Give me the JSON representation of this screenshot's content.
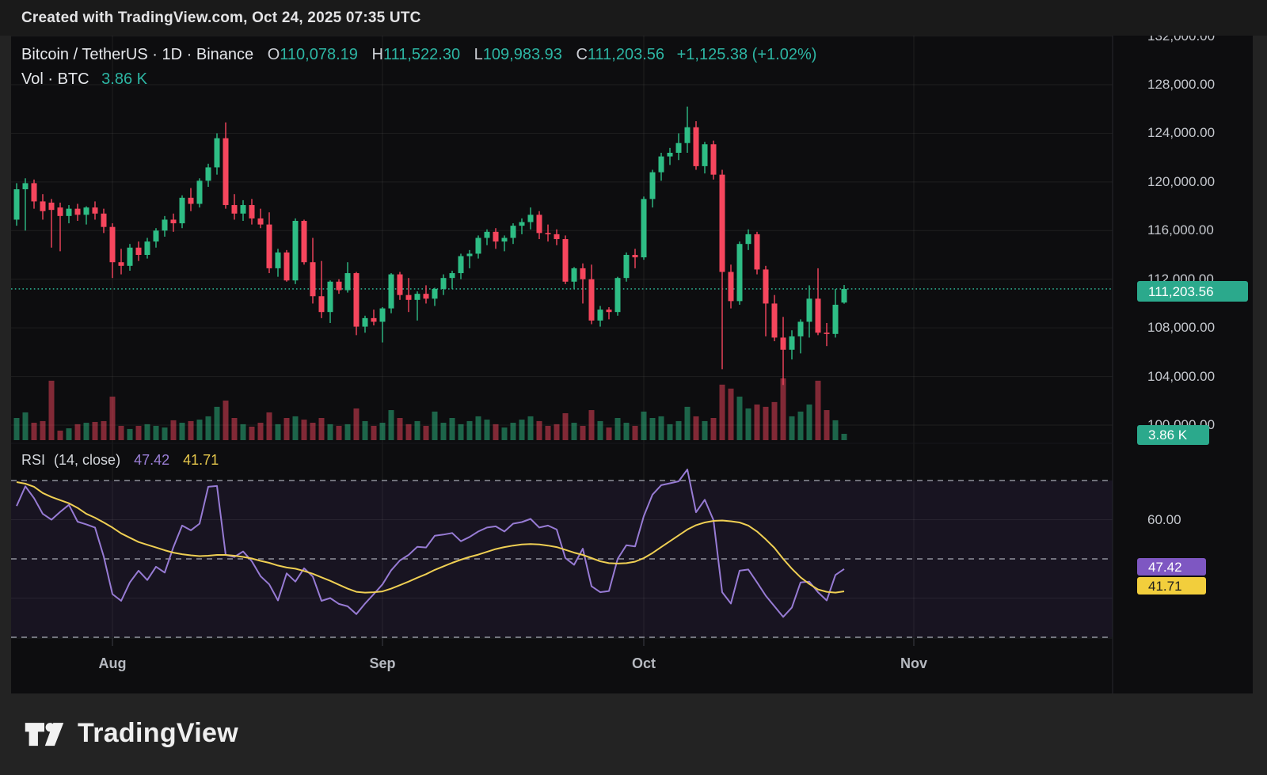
{
  "watermark": {
    "text": "Created with TradingView.com, Oct 24, 2025 07:35 UTC"
  },
  "legend": {
    "symbol": "Bitcoin / TetherUS",
    "separator": "·",
    "interval": "1D",
    "exchange": "Binance",
    "ohlc": {
      "o_label": "O",
      "o": "110,078.19",
      "h_label": "H",
      "h": "111,522.30",
      "l_label": "L",
      "l": "109,983.93",
      "c_label": "C",
      "c": "111,203.56",
      "change": "+1,125.38 (+1.02%)"
    },
    "volume_label": "Vol · BTC",
    "volume_value": "3.86 K"
  },
  "rsi_pane": {
    "title": "RSI",
    "params": "(14, close)",
    "rsi_value": "47.42",
    "ma_value": "41.71",
    "axis_label": "60.00",
    "rsi_badge": "47.42",
    "ma_badge": "41.71"
  },
  "badges": {
    "last_price": "111,203.56",
    "last_volume": "3.86 K"
  },
  "logo": {
    "brand": "TradingView",
    "mark_icon": "tradingview-logo-icon"
  },
  "colors": {
    "up": "#2EBD85",
    "down": "#F6465D",
    "vol_up": "#2EBD85",
    "vol_down": "#F6465D",
    "rsi_line": "#977BD4",
    "rsi_ma_line": "#EFCF53",
    "price_badge_bg": "#2BA98C",
    "rsi_badge_bg": "#7E57C2",
    "ma_badge_bg": "#F2CE3C",
    "band_fill": "rgba(126,87,194,0.10)",
    "grid": "rgba(255,255,255,0.07)",
    "dashed_level": "#8F929C",
    "dotted_price_line": "#2BA98C",
    "axis_text": "#C5C8CE"
  },
  "time_axis": {
    "labels": [
      {
        "text": "Aug",
        "candle_index": 11
      },
      {
        "text": "Sep",
        "candle_index": 42
      },
      {
        "text": "Oct",
        "candle_index": 72
      },
      {
        "text": "Nov",
        "candle_index": 103
      }
    ]
  },
  "chart_data": {
    "type": "candlestick+volume+rsi",
    "title": "Bitcoin / TetherUS · 1D · Binance",
    "last_price": 111203.56,
    "last_volume_k": 3.86,
    "price_axis_labels": [
      {
        "price": 132000,
        "text": "132,000.00"
      },
      {
        "price": 128000,
        "text": "128,000.00"
      },
      {
        "price": 124000,
        "text": "124,000.00"
      },
      {
        "price": 120000,
        "text": "120,000.00"
      },
      {
        "price": 116000,
        "text": "116,000.00"
      },
      {
        "price": 112000,
        "text": "112,000.00"
      },
      {
        "price": 108000,
        "text": "108,000.00"
      },
      {
        "price": 104000,
        "text": "104,000.00"
      },
      {
        "price": 100000,
        "text": "100,000.00"
      }
    ],
    "price_range_visible": [
      99500,
      132500
    ],
    "rsi_dashed_levels": [
      70,
      50,
      30
    ],
    "rsi_solid_levels": [
      60,
      40
    ],
    "rsi_axis_labels": [
      {
        "value": 60,
        "text": "60.00"
      }
    ],
    "candles": [
      [
        116900,
        119900,
        116400,
        119400
      ],
      [
        119400,
        120300,
        116000,
        119900
      ],
      [
        119900,
        120200,
        117800,
        118400
      ],
      [
        118400,
        119000,
        116900,
        117600
      ],
      [
        118300,
        118600,
        114600,
        117700
      ],
      [
        117900,
        118300,
        114300,
        117200
      ],
      [
        117200,
        118100,
        116600,
        117800
      ],
      [
        117800,
        118200,
        116800,
        117300
      ],
      [
        117300,
        118000,
        116500,
        117900
      ],
      [
        117900,
        118400,
        116900,
        117400
      ],
      [
        117400,
        117800,
        115800,
        116300
      ],
      [
        116300,
        116600,
        112100,
        113400
      ],
      [
        113400,
        114500,
        112400,
        113100
      ],
      [
        113100,
        114900,
        112700,
        114600
      ],
      [
        114600,
        115100,
        113500,
        114000
      ],
      [
        114000,
        115400,
        113700,
        115100
      ],
      [
        115100,
        116200,
        114600,
        116000
      ],
      [
        116000,
        117200,
        115500,
        116900
      ],
      [
        116900,
        117400,
        115900,
        116600
      ],
      [
        116600,
        118900,
        116200,
        118700
      ],
      [
        118700,
        119500,
        117600,
        118200
      ],
      [
        118200,
        120300,
        117900,
        120100
      ],
      [
        120100,
        121500,
        119600,
        121200
      ],
      [
        121200,
        124000,
        120600,
        123600
      ],
      [
        123600,
        124900,
        117800,
        118100
      ],
      [
        118100,
        119000,
        116900,
        117400
      ],
      [
        117400,
        118500,
        116800,
        118100
      ],
      [
        118100,
        118600,
        116500,
        117000
      ],
      [
        117000,
        117800,
        116200,
        116500
      ],
      [
        116500,
        117500,
        112500,
        112900
      ],
      [
        112900,
        114500,
        112200,
        114200
      ],
      [
        114200,
        114400,
        111800,
        111900
      ],
      [
        111900,
        117000,
        111600,
        116800
      ],
      [
        116800,
        116900,
        113200,
        113400
      ],
      [
        113400,
        115400,
        110000,
        110600
      ],
      [
        110600,
        113500,
        108800,
        109300
      ],
      [
        109300,
        111900,
        108400,
        111800
      ],
      [
        111800,
        112000,
        110800,
        111100
      ],
      [
        111100,
        113400,
        110900,
        112500
      ],
      [
        112500,
        112600,
        107400,
        108100
      ],
      [
        108100,
        109000,
        107600,
        108800
      ],
      [
        108800,
        109500,
        108200,
        108500
      ],
      [
        108500,
        109700,
        106800,
        109600
      ],
      [
        109600,
        112500,
        109200,
        112400
      ],
      [
        112400,
        112600,
        110300,
        110700
      ],
      [
        110700,
        112100,
        109300,
        110300
      ],
      [
        110300,
        111000,
        108600,
        110800
      ],
      [
        110800,
        111500,
        110000,
        110400
      ],
      [
        110400,
        111300,
        109800,
        111200
      ],
      [
        111200,
        112400,
        110700,
        112100
      ],
      [
        112100,
        112700,
        111200,
        112500
      ],
      [
        112500,
        114100,
        112000,
        113900
      ],
      [
        113900,
        114400,
        112900,
        114100
      ],
      [
        114100,
        115600,
        113700,
        115400
      ],
      [
        115400,
        116100,
        114800,
        115900
      ],
      [
        115900,
        116200,
        114500,
        115100
      ],
      [
        115100,
        115600,
        114300,
        115400
      ],
      [
        115400,
        116600,
        114900,
        116400
      ],
      [
        116400,
        117000,
        115700,
        116700
      ],
      [
        116700,
        117900,
        116100,
        117300
      ],
      [
        117300,
        117600,
        115300,
        115800
      ],
      [
        115800,
        116500,
        115100,
        115700
      ],
      [
        115700,
        116100,
        114800,
        115300
      ],
      [
        115300,
        115600,
        111600,
        111800
      ],
      [
        111800,
        113000,
        111200,
        112900
      ],
      [
        112900,
        113300,
        110000,
        112000
      ],
      [
        112000,
        113200,
        108300,
        108600
      ],
      [
        108600,
        109800,
        108100,
        109500
      ],
      [
        109500,
        109700,
        108700,
        109300
      ],
      [
        109300,
        112200,
        109000,
        112100
      ],
      [
        112100,
        114200,
        111800,
        114000
      ],
      [
        114000,
        114500,
        112900,
        113800
      ],
      [
        113800,
        118800,
        113600,
        118600
      ],
      [
        118600,
        121000,
        117900,
        120800
      ],
      [
        120800,
        122400,
        120100,
        122100
      ],
      [
        122100,
        122800,
        121400,
        122400
      ],
      [
        122400,
        124000,
        121800,
        123200
      ],
      [
        123200,
        126200,
        122400,
        124500
      ],
      [
        124500,
        125000,
        121000,
        121300
      ],
      [
        121300,
        123300,
        120700,
        123100
      ],
      [
        123100,
        123400,
        120200,
        120600
      ],
      [
        120600,
        121000,
        104600,
        112600
      ],
      [
        112600,
        113200,
        109600,
        110200
      ],
      [
        110200,
        115100,
        109900,
        114900
      ],
      [
        114900,
        116100,
        114400,
        115700
      ],
      [
        115700,
        115900,
        112400,
        112800
      ],
      [
        112800,
        113100,
        107300,
        110000
      ],
      [
        110000,
        110700,
        106900,
        107200
      ],
      [
        107200,
        108900,
        103300,
        106200
      ],
      [
        106200,
        107800,
        105400,
        107300
      ],
      [
        107300,
        108700,
        105900,
        108500
      ],
      [
        108500,
        111500,
        107200,
        110400
      ],
      [
        110400,
        112900,
        107400,
        107600
      ],
      [
        107600,
        108400,
        106500,
        107500
      ],
      [
        107500,
        111200,
        107200,
        109900
      ],
      [
        110078.19,
        111522.3,
        109983.93,
        111203.56
      ]
    ],
    "volume_k": [
      13.5,
      16.9,
      10.6,
      11.6,
      36.2,
      5.8,
      7.2,
      9.7,
      10.6,
      11.1,
      11.6,
      26.5,
      8.7,
      6.8,
      8.7,
      9.7,
      8.7,
      7.7,
      12.1,
      10.6,
      11.6,
      12.5,
      14.5,
      20.3,
      24.1,
      13.5,
      9.7,
      8.2,
      10.6,
      16.9,
      9.7,
      13.5,
      14.5,
      12.5,
      10.6,
      13.5,
      9.7,
      8.7,
      9.7,
      19.3,
      11.6,
      8.7,
      10.6,
      18.3,
      13.5,
      9.7,
      11.6,
      8.7,
      17.4,
      10.6,
      13.5,
      9.7,
      11.6,
      14.5,
      12.5,
      9.7,
      7.7,
      10.6,
      12.5,
      14.5,
      11.6,
      8.7,
      9.7,
      16.4,
      10.6,
      8.7,
      18.3,
      11.6,
      7.7,
      13.5,
      10.6,
      8.7,
      17.4,
      13.5,
      14.5,
      9.7,
      11.6,
      20.3,
      14.5,
      11.6,
      13.5,
      33.8,
      31.4,
      26.5,
      19.3,
      21.7,
      20.3,
      23.2,
      37.6,
      14.5,
      17.4,
      21.7,
      36.2,
      18.3,
      12.1,
      3.86
    ],
    "rsi": [
      63.5,
      68.5,
      65.5,
      61.5,
      60.0,
      62.0,
      63.8,
      59.5,
      58.8,
      58.0,
      50.6,
      41.0,
      39.3,
      44.0,
      47.0,
      44.6,
      48.0,
      46.5,
      53.0,
      58.5,
      57.3,
      59.0,
      68.4,
      68.6,
      51.0,
      50.5,
      51.9,
      49.4,
      45.6,
      43.5,
      39.4,
      46.3,
      44.2,
      47.6,
      45.5,
      39.3,
      40.0,
      38.5,
      37.9,
      35.9,
      38.6,
      41.0,
      43.5,
      47.1,
      49.6,
      51.0,
      53.1,
      52.9,
      55.9,
      56.2,
      56.6,
      54.5,
      55.6,
      57.0,
      58.0,
      58.3,
      57.0,
      59.0,
      59.4,
      60.2,
      58.0,
      58.5,
      57.5,
      50.2,
      48.5,
      52.6,
      43.0,
      41.5,
      41.8,
      50.0,
      53.5,
      53.2,
      60.9,
      66.4,
      68.8,
      69.3,
      69.8,
      72.8,
      61.9,
      65.1,
      59.9,
      41.5,
      38.6,
      47.0,
      47.3,
      44.0,
      40.6,
      37.9,
      35.2,
      37.6,
      44.0,
      44.2,
      41.5,
      39.4,
      45.9,
      47.42
    ],
    "rsi_ma": [
      69.6,
      69.2,
      68.4,
      66.8,
      65.8,
      65.0,
      64.2,
      63.0,
      61.5,
      60.5,
      59.3,
      58.0,
      56.5,
      55.4,
      54.3,
      53.6,
      52.9,
      52.2,
      51.6,
      51.2,
      50.9,
      50.7,
      50.8,
      51.0,
      51.0,
      50.8,
      50.5,
      50.1,
      49.5,
      49.0,
      48.3,
      47.8,
      47.5,
      46.9,
      46.2,
      45.3,
      44.4,
      43.4,
      42.4,
      41.6,
      41.4,
      41.5,
      41.7,
      42.4,
      43.3,
      44.2,
      45.2,
      46.1,
      47.2,
      48.1,
      49.0,
      49.8,
      50.5,
      51.1,
      51.8,
      52.5,
      53.0,
      53.4,
      53.7,
      53.8,
      53.7,
      53.4,
      53.0,
      52.3,
      51.6,
      51.0,
      50.2,
      49.4,
      48.9,
      48.8,
      48.9,
      49.3,
      50.2,
      51.5,
      53.0,
      54.5,
      56.0,
      57.5,
      58.6,
      59.3,
      59.7,
      59.8,
      59.6,
      59.3,
      58.5,
      57.0,
      55.0,
      52.8,
      50.0,
      47.5,
      45.3,
      43.6,
      42.2,
      41.6,
      41.4,
      41.71
    ]
  }
}
